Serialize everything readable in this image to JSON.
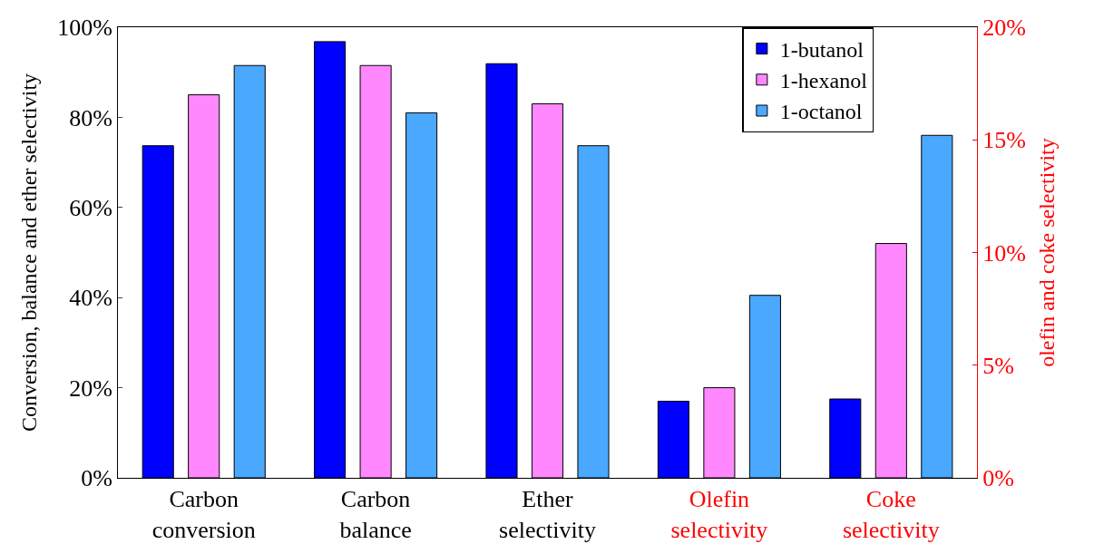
{
  "chart_data": {
    "type": "bar",
    "ylabel": "Conversion, balance and ether selectivity",
    "y2label": "olefin and coke selectivity",
    "categories": [
      "Carbon\nconversion",
      "Carbon\nbalance",
      "Ether\nselectivity",
      "Olefin\nselectivity",
      "Coke\nselectivity"
    ],
    "series": [
      {
        "name": "1-butanol",
        "color": "#0000ff",
        "values": [
          73.7,
          96.8,
          91.9,
          null,
          null
        ]
      },
      {
        "name": "1-hexanol",
        "color": "#ff88ff",
        "values": [
          85,
          91.5,
          83,
          null,
          null
        ]
      },
      {
        "name": "1-octanol",
        "color": "#4aa8ff",
        "values": [
          91.5,
          81,
          73.7,
          null,
          null
        ]
      },
      {
        "color": "#0000ff",
        "axis": "y2",
        "values": [
          null,
          null,
          null,
          3.4,
          3.5
        ]
      },
      {
        "color": "#ff88ff",
        "axis": "y2",
        "values": [
          null,
          null,
          null,
          4.0,
          10.4
        ]
      },
      {
        "color": "#4aa8ff",
        "axis": "y2",
        "values": [
          null,
          null,
          null,
          8.1,
          15.2
        ]
      }
    ],
    "ylim": [
      0,
      100
    ],
    "yticks": [
      {
        "value": 0,
        "label": "0%"
      },
      {
        "value": 20,
        "label": "20%"
      },
      {
        "value": 40,
        "label": "40%"
      },
      {
        "value": 60,
        "label": "60%"
      },
      {
        "value": 80,
        "label": "80%"
      },
      {
        "value": 100,
        "label": "100%"
      }
    ],
    "y2lim": [
      0,
      20
    ],
    "y2ticks": [
      {
        "value": 0,
        "label": "0%"
      },
      {
        "value": 5,
        "label": "5%"
      },
      {
        "value": 10,
        "label": "10%"
      },
      {
        "value": 15,
        "label": "15%"
      },
      {
        "value": 20,
        "label": "20%"
      }
    ],
    "legend": "top right"
  }
}
